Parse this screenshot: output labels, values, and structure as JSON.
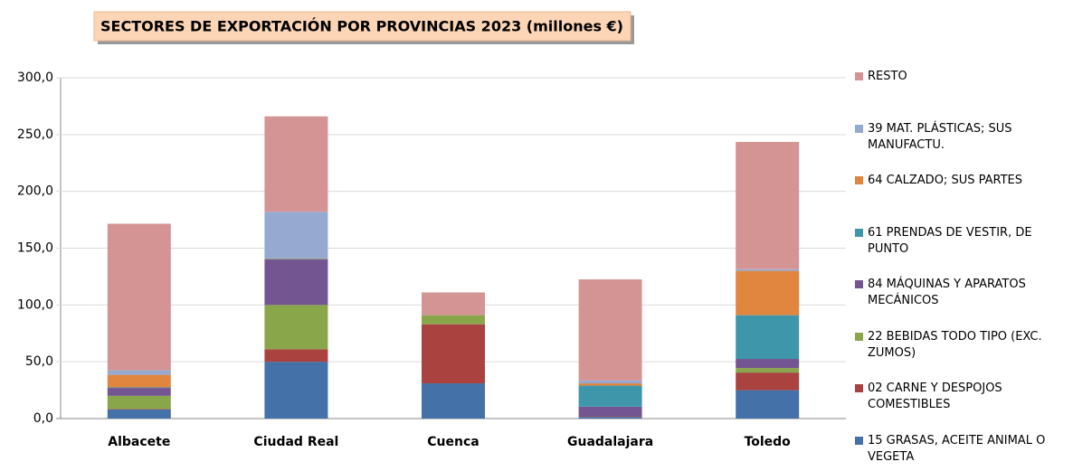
{
  "chart_data": {
    "type": "stacked_bar",
    "title": "SECTORES DE EXPORTACIÓN POR PROVINCIAS 2023 (millones €)",
    "categories": [
      "Albacete",
      "Ciudad Real",
      "Cuenca",
      "Guadalajara",
      "Toledo"
    ],
    "series": [
      {
        "name": "15 GRASAS, ACEITE ANIMAL O VEGETA",
        "color": "#4472a8",
        "values": [
          8,
          50,
          31,
          1.5,
          25
        ]
      },
      {
        "name": "02 CARNE Y DESPOJOS COMESTIBLES",
        "color": "#aa4340",
        "values": [
          0.5,
          11,
          52,
          0.5,
          15.5
        ]
      },
      {
        "name": "22 BEBIDAS TODO TIPO (EXC. ZUMOS)",
        "color": "#8aa64b",
        "values": [
          11.5,
          39,
          8,
          0,
          4
        ]
      },
      {
        "name": "84 MÁQUINAS Y APARATOS MECÁNICOS",
        "color": "#735691",
        "values": [
          7,
          40,
          0,
          8.5,
          8
        ]
      },
      {
        "name": "61 PRENDAS DE VESTIR, DE PUNTO",
        "color": "#3e96ab",
        "values": [
          0.5,
          0.5,
          0,
          18.5,
          38.5
        ]
      },
      {
        "name": "64 CALZADO; SUS PARTES",
        "color": "#e0863e",
        "values": [
          11,
          0.5,
          0,
          2,
          39
        ]
      },
      {
        "name": "39 MAT. PLÁSTICAS; SUS MANUFACTU.",
        "color": "#95a9d1",
        "values": [
          4,
          41,
          0,
          2.5,
          1.5
        ]
      },
      {
        "name": "RESTO",
        "color": "#d49494",
        "values": [
          129,
          84,
          20,
          89,
          112
        ]
      }
    ],
    "ylim": [
      0,
      300
    ],
    "yticks": [
      {
        "value": 0,
        "label": "0,0"
      },
      {
        "value": 50,
        "label": "50,0"
      },
      {
        "value": 100,
        "label": "100,0"
      },
      {
        "value": 150,
        "label": "150,0"
      },
      {
        "value": 200,
        "label": "200,0"
      },
      {
        "value": 250,
        "label": "250,0"
      },
      {
        "value": 300,
        "label": "300,0"
      }
    ],
    "grid": true,
    "legend": "right"
  }
}
